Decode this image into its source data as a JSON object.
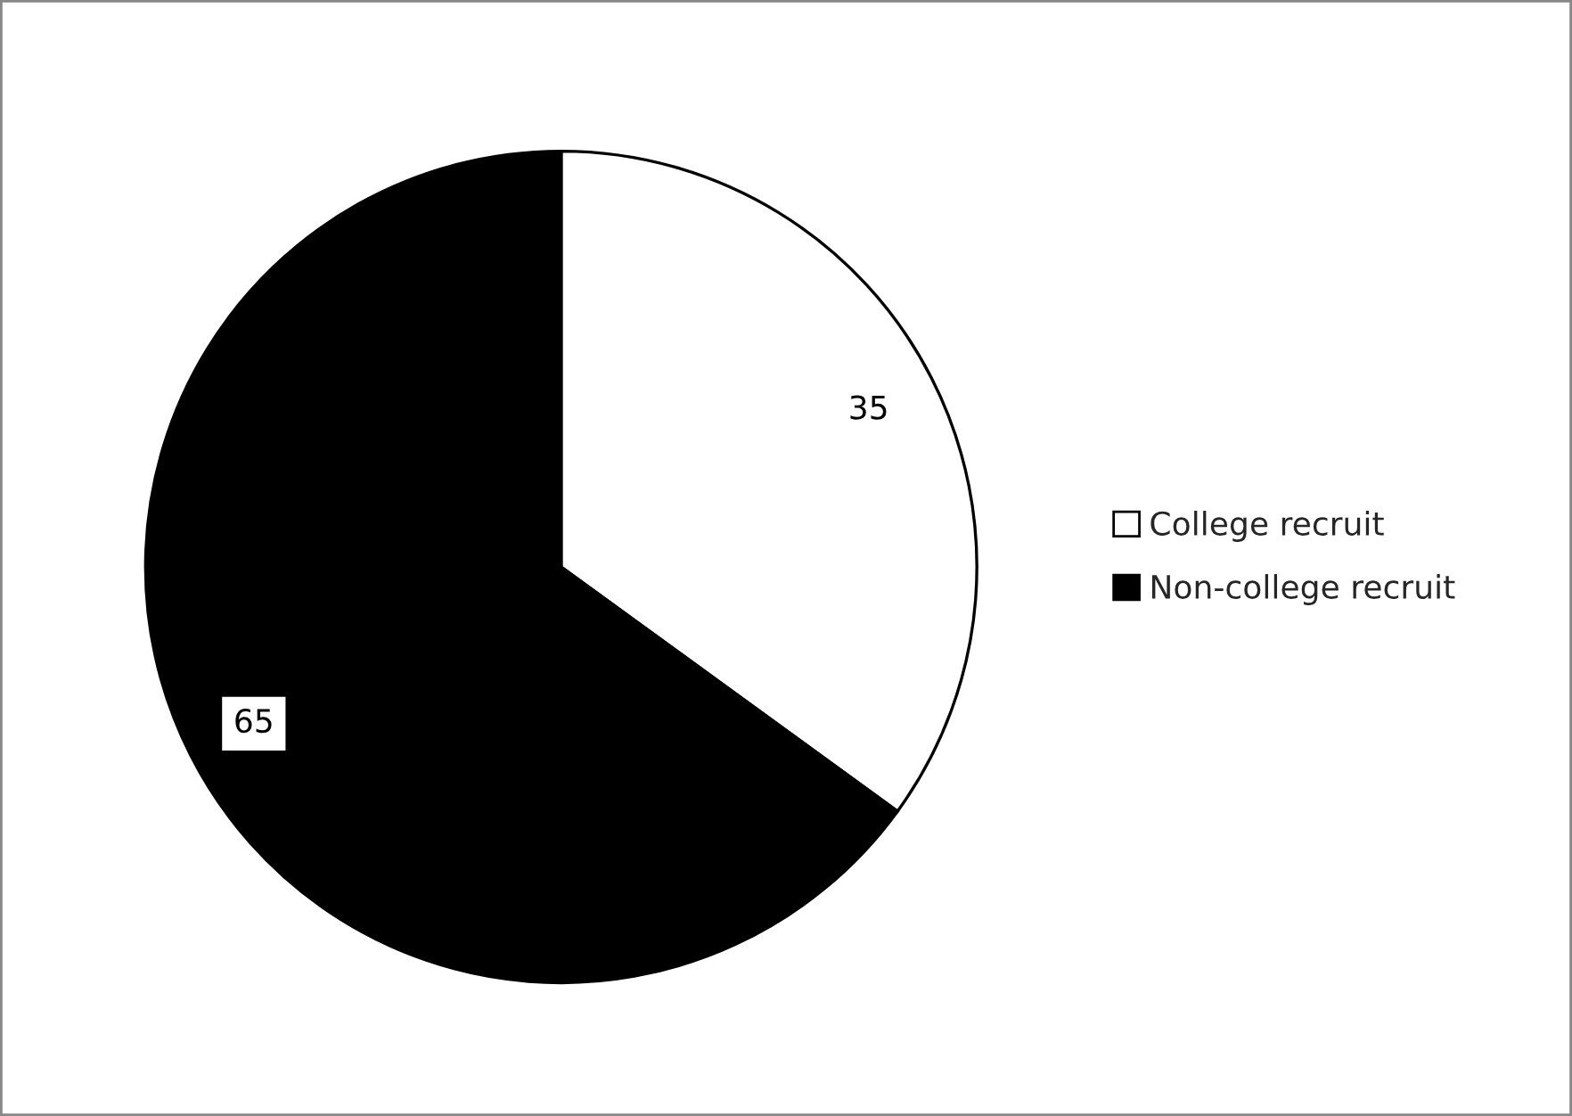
{
  "chart_data": {
    "type": "pie",
    "categories": [
      "College recruit",
      "Non-college recruit"
    ],
    "values": [
      35,
      65
    ],
    "colors": [
      "#ffffff",
      "#000000"
    ],
    "data_labels": true,
    "legend": "right"
  }
}
